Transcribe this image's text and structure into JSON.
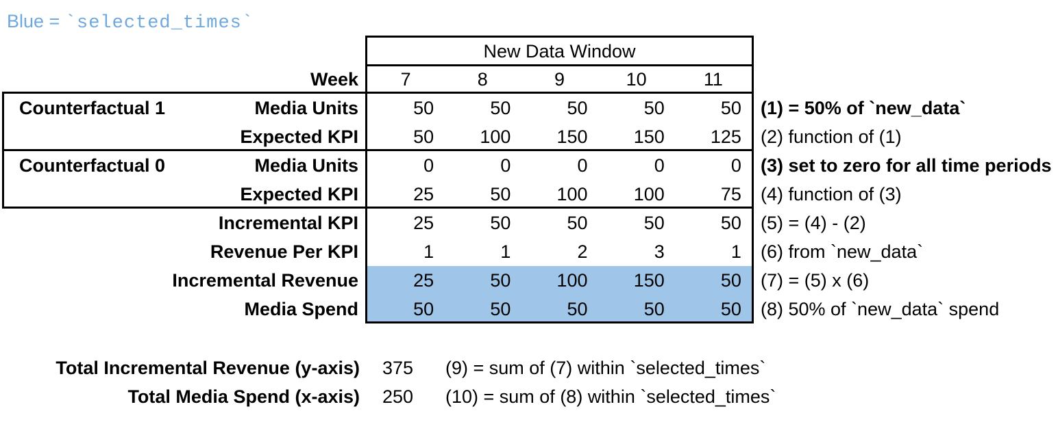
{
  "legend": {
    "prefix": "Blue = ",
    "code": "`selected_times`"
  },
  "colors": {
    "highlight_blue": "#9fc5e8",
    "legend_blue": "#6fa8dc",
    "border": "#000000"
  },
  "table": {
    "window_title": "New Data Window",
    "week_label": "Week",
    "weeks": [
      "7",
      "8",
      "9",
      "10",
      "11"
    ],
    "groups": {
      "cf1": "Counterfactual 1",
      "cf0": "Counterfactual 0"
    },
    "rows": [
      {
        "group": "Counterfactual 1",
        "label": "Media Units",
        "values": [
          "50",
          "50",
          "50",
          "50",
          "50"
        ],
        "note": "(1) = 50% of `new_data`",
        "note_bold": true,
        "highlight": false
      },
      {
        "group": "",
        "label": "Expected KPI",
        "values": [
          "50",
          "100",
          "150",
          "150",
          "125"
        ],
        "note": "(2) function of (1)",
        "note_bold": false,
        "highlight": false
      },
      {
        "group": "Counterfactual 0",
        "label": "Media Units",
        "values": [
          "0",
          "0",
          "0",
          "0",
          "0"
        ],
        "note": "(3) set to zero for all time periods",
        "note_bold": true,
        "highlight": false
      },
      {
        "group": "",
        "label": "Expected KPI",
        "values": [
          "25",
          "50",
          "100",
          "100",
          "75"
        ],
        "note": "(4) function of (3)",
        "note_bold": false,
        "highlight": false
      },
      {
        "group": "",
        "label": "Incremental KPI",
        "values": [
          "25",
          "50",
          "50",
          "50",
          "50"
        ],
        "note": "(5) = (4) - (2)",
        "note_bold": false,
        "highlight": false
      },
      {
        "group": "",
        "label": "Revenue Per KPI",
        "values": [
          "1",
          "1",
          "2",
          "3",
          "1"
        ],
        "note": "(6) from `new_data`",
        "note_bold": false,
        "highlight": false
      },
      {
        "group": "",
        "label": "Incremental Revenue",
        "values": [
          "25",
          "50",
          "100",
          "150",
          "50"
        ],
        "note": "(7) = (5) x (6)",
        "note_bold": false,
        "highlight": true
      },
      {
        "group": "",
        "label": "Media Spend",
        "values": [
          "50",
          "50",
          "50",
          "50",
          "50"
        ],
        "note": "(8) 50% of `new_data` spend",
        "note_bold": false,
        "highlight": true
      }
    ]
  },
  "totals": [
    {
      "label": "Total Incremental Revenue (y-axis)",
      "value": "375",
      "note": "(9) = sum of (7) within `selected_times`"
    },
    {
      "label": "Total Media Spend (x-axis)",
      "value": "250",
      "note": "(10) = sum of (8) within `selected_times`"
    }
  ]
}
